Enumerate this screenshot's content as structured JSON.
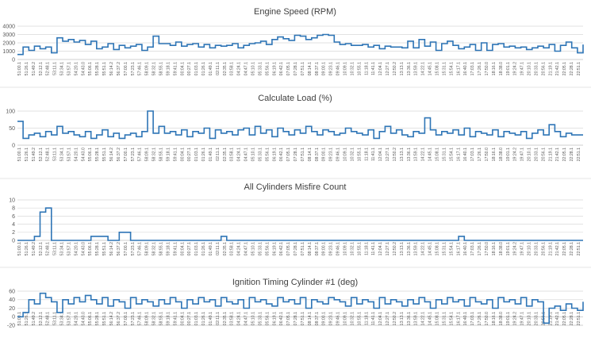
{
  "colors": {
    "line": "#2e75b6",
    "grid": "#d9d9d9",
    "text": "#404040"
  },
  "x_tick_labels": [
    "51:00.1",
    "51:26.1",
    "51:49.2",
    "52:12.1",
    "52:48.1",
    "53:11.1",
    "53:34.1",
    "53:57.1",
    "54:20.1",
    "54:43.0",
    "55:06.1",
    "55:28.1",
    "55:51.1",
    "56:14.2",
    "56:37.2",
    "57:00.1",
    "57:23.1",
    "57:46.1",
    "58:09.1",
    "58:32.1",
    "58:55.1",
    "59:18.1",
    "59:41.1",
    "00:04.1",
    "00:27.1",
    "01:03.1",
    "01:26.1",
    "01:49.1",
    "02:11.1",
    "02:35.1",
    "03:58.1",
    "04:24.1",
    "04:47.1",
    "05:10.1",
    "05:33.1",
    "05:56.1",
    "06:19.1",
    "06:42.1",
    "07:05.1",
    "07:28.1",
    "07:51.1",
    "08:14.1",
    "08:37.1",
    "09:00.1",
    "09:23.1",
    "09:46.1",
    "10:09.1",
    "10:32.1",
    "10:55.1",
    "11:18.1",
    "11:41.1",
    "12:04.1",
    "12:27.1",
    "12:50.2",
    "13:13.1",
    "13:36.1",
    "13:59.1",
    "14:22.1",
    "14:45.1",
    "15:08.1",
    "15:31.1",
    "15:54.1",
    "16:17.1",
    "16:40.1",
    "17:03.1",
    "17:26.1",
    "17:50.0",
    "18:16.1",
    "18:38.0",
    "19:01.1",
    "19:24.2",
    "19:47.1",
    "20:10.1",
    "20:33.1",
    "20:56.1",
    "21:19.1",
    "21:42.1",
    "22:05.1",
    "22:28.1",
    "22:51.1"
  ],
  "chart_data": [
    {
      "type": "line",
      "title": "Engine Speed (RPM)",
      "ylim": [
        0,
        4000
      ],
      "yticks": [
        0,
        1000,
        2000,
        3000,
        4000
      ],
      "grid": true,
      "series": [
        {
          "values": [
            600,
            1500,
            1100,
            1600,
            1300,
            1500,
            800,
            2600,
            2200,
            2400,
            2100,
            2300,
            1800,
            2200,
            1300,
            1500,
            1900,
            1200,
            1700,
            1400,
            1600,
            1800,
            1100,
            1500,
            2800,
            1900,
            1900,
            1700,
            2100,
            1600,
            1800,
            1900,
            1500,
            1800,
            1400,
            1700,
            1600,
            1700,
            1900,
            1400,
            1700,
            1900,
            2000,
            2200,
            1800,
            2400,
            2700,
            2500,
            2300,
            2900,
            2800,
            2400,
            2600,
            2900,
            3000,
            2900,
            2100,
            1800,
            1900,
            1700,
            1700,
            1800,
            1500,
            1700,
            1300,
            1600,
            1500,
            1500,
            1400,
            2200,
            1400,
            2400,
            1600,
            2100,
            1100,
            1900,
            2200,
            1700,
            1300,
            1500,
            1800,
            1100,
            2000,
            1100,
            1800,
            1900,
            1500,
            1600,
            1400,
            1500,
            1200,
            1400,
            1600,
            1400,
            1800,
            1000,
            1700,
            2100,
            1400,
            800,
            1800
          ]
        }
      ]
    },
    {
      "type": "line",
      "title": "Calculate Load (%)",
      "ylim": [
        0,
        100
      ],
      "yticks": [
        0,
        50,
        100
      ],
      "grid": true,
      "series": [
        {
          "values": [
            70,
            20,
            30,
            35,
            25,
            40,
            30,
            55,
            35,
            40,
            30,
            25,
            40,
            20,
            30,
            45,
            25,
            35,
            20,
            30,
            35,
            25,
            40,
            100,
            35,
            55,
            35,
            40,
            30,
            45,
            25,
            40,
            35,
            50,
            20,
            45,
            35,
            40,
            30,
            45,
            50,
            30,
            55,
            35,
            45,
            25,
            50,
            40,
            30,
            45,
            35,
            55,
            40,
            30,
            45,
            40,
            30,
            35,
            50,
            40,
            35,
            30,
            45,
            20,
            40,
            55,
            35,
            45,
            30,
            25,
            40,
            35,
            80,
            45,
            30,
            40,
            35,
            45,
            30,
            50,
            25,
            40,
            35,
            30,
            45,
            25,
            40,
            35,
            30,
            40,
            20,
            35,
            45,
            30,
            60,
            40,
            25,
            35,
            30,
            30,
            30
          ]
        }
      ]
    },
    {
      "type": "line",
      "title": "All Cylinders Misfire Count",
      "ylim": [
        0,
        10
      ],
      "yticks": [
        0,
        2,
        4,
        6,
        8,
        10
      ],
      "grid": true,
      "series": [
        {
          "values": [
            0,
            0,
            0,
            1,
            7,
            8,
            0,
            0,
            0,
            0,
            0,
            0,
            0,
            1,
            1,
            1,
            0,
            0,
            2,
            2,
            0,
            0,
            0,
            0,
            0,
            0,
            0,
            0,
            0,
            0,
            0,
            0,
            0,
            0,
            0,
            0,
            1,
            0,
            0,
            0,
            0,
            0,
            0,
            0,
            0,
            0,
            0,
            0,
            0,
            0,
            0,
            0,
            0,
            0,
            0,
            0,
            0,
            0,
            0,
            0,
            0,
            0,
            0,
            0,
            0,
            0,
            0,
            0,
            0,
            0,
            0,
            0,
            0,
            0,
            0,
            0,
            0,
            0,
            1,
            0,
            0,
            0,
            0,
            0,
            0,
            0,
            0,
            0,
            0,
            0,
            0,
            0,
            0,
            0,
            0,
            0,
            0,
            0,
            0,
            0,
            0
          ]
        }
      ]
    },
    {
      "type": "line",
      "title": "Ignition Timing Cylinder #1 (deg)",
      "ylim": [
        -20,
        60
      ],
      "yticks": [
        -20,
        0,
        20,
        40,
        60
      ],
      "grid": true,
      "series": [
        {
          "values": [
            0,
            10,
            40,
            30,
            55,
            45,
            35,
            10,
            40,
            30,
            45,
            35,
            50,
            40,
            30,
            45,
            25,
            40,
            35,
            20,
            45,
            30,
            40,
            35,
            25,
            40,
            30,
            45,
            35,
            20,
            40,
            30,
            45,
            35,
            40,
            25,
            45,
            35,
            30,
            40,
            20,
            45,
            35,
            40,
            30,
            25,
            45,
            35,
            40,
            30,
            45,
            20,
            40,
            35,
            30,
            45,
            40,
            35,
            25,
            45,
            30,
            40,
            35,
            20,
            45,
            30,
            40,
            35,
            25,
            40,
            30,
            45,
            35,
            20,
            40,
            30,
            45,
            35,
            40,
            25,
            45,
            35,
            30,
            40,
            20,
            45,
            35,
            40,
            30,
            45,
            25,
            40,
            35,
            -15,
            20,
            25,
            15,
            30,
            20,
            15,
            35
          ]
        }
      ]
    }
  ]
}
